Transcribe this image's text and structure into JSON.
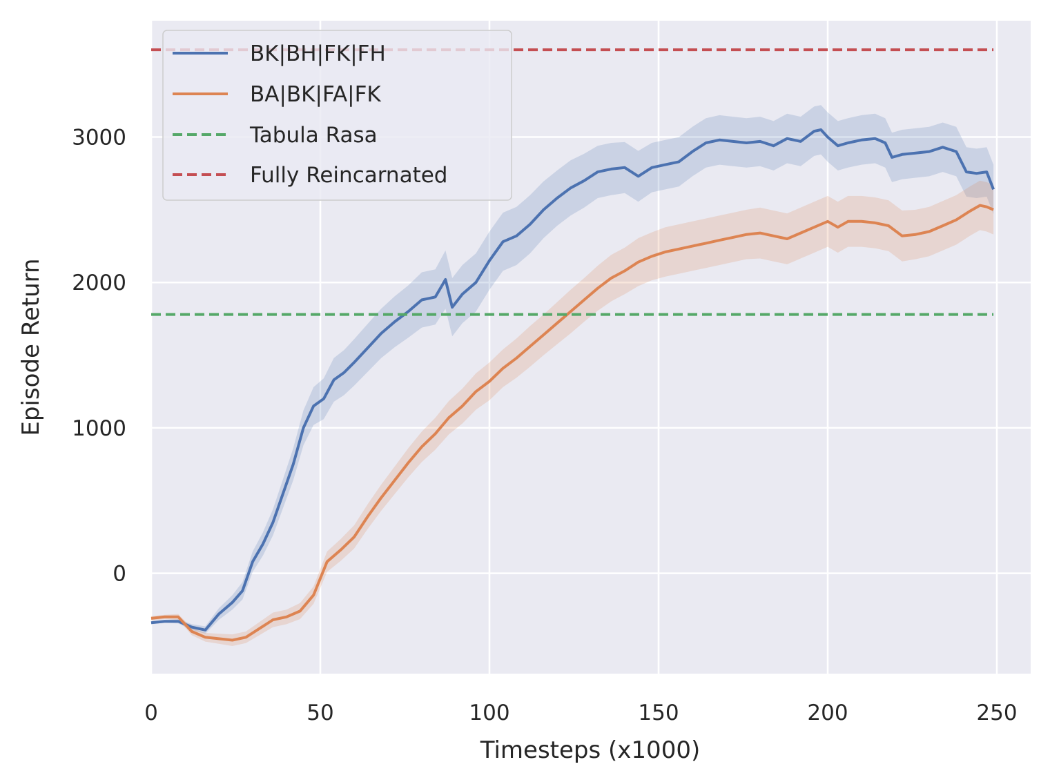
{
  "chart_data": {
    "type": "line",
    "title": "",
    "xlabel": "Timesteps (x1000)",
    "ylabel": "Episode Return",
    "xlim": [
      0,
      260
    ],
    "ylim": [
      -690,
      3800
    ],
    "xticks": [
      0,
      50,
      100,
      150,
      200,
      250
    ],
    "yticks": [
      0,
      1000,
      2000,
      3000
    ],
    "grid": true,
    "legend_position": "top-left",
    "background": "#eaeaf2",
    "series": [
      {
        "name": "BK|BH|FK|FH",
        "color": "#4c72b0",
        "style": "solid",
        "band_alpha": 0.2,
        "points": [
          [
            0,
            -340,
            10
          ],
          [
            4,
            -330,
            10
          ],
          [
            8,
            -330,
            15
          ],
          [
            12,
            -370,
            20
          ],
          [
            16,
            -390,
            25
          ],
          [
            20,
            -280,
            40
          ],
          [
            24,
            -200,
            50
          ],
          [
            27,
            -120,
            60
          ],
          [
            30,
            80,
            70
          ],
          [
            33,
            200,
            80
          ],
          [
            36,
            350,
            90
          ],
          [
            39,
            550,
            100
          ],
          [
            42,
            750,
            110
          ],
          [
            45,
            1000,
            120
          ],
          [
            48,
            1150,
            130
          ],
          [
            51,
            1200,
            140
          ],
          [
            54,
            1330,
            150
          ],
          [
            57,
            1380,
            155
          ],
          [
            60,
            1450,
            160
          ],
          [
            64,
            1550,
            165
          ],
          [
            68,
            1650,
            170
          ],
          [
            72,
            1730,
            175
          ],
          [
            76,
            1800,
            180
          ],
          [
            80,
            1880,
            190
          ],
          [
            84,
            1900,
            190
          ],
          [
            87,
            2020,
            200
          ],
          [
            89,
            1830,
            200
          ],
          [
            92,
            1920,
            200
          ],
          [
            96,
            2000,
            200
          ],
          [
            100,
            2150,
            200
          ],
          [
            104,
            2280,
            200
          ],
          [
            108,
            2320,
            200
          ],
          [
            112,
            2400,
            200
          ],
          [
            116,
            2500,
            195
          ],
          [
            120,
            2580,
            190
          ],
          [
            124,
            2650,
            190
          ],
          [
            128,
            2700,
            185
          ],
          [
            132,
            2760,
            180
          ],
          [
            136,
            2780,
            180
          ],
          [
            140,
            2790,
            175
          ],
          [
            144,
            2730,
            175
          ],
          [
            148,
            2790,
            170
          ],
          [
            152,
            2810,
            170
          ],
          [
            156,
            2830,
            170
          ],
          [
            160,
            2900,
            170
          ],
          [
            164,
            2960,
            170
          ],
          [
            168,
            2980,
            170
          ],
          [
            172,
            2970,
            170
          ],
          [
            176,
            2960,
            170
          ],
          [
            180,
            2970,
            170
          ],
          [
            184,
            2940,
            170
          ],
          [
            188,
            2990,
            170
          ],
          [
            192,
            2970,
            170
          ],
          [
            196,
            3040,
            170
          ],
          [
            198,
            3050,
            170
          ],
          [
            200,
            3000,
            170
          ],
          [
            203,
            2940,
            170
          ],
          [
            206,
            2960,
            170
          ],
          [
            210,
            2980,
            170
          ],
          [
            214,
            2990,
            170
          ],
          [
            217,
            2960,
            170
          ],
          [
            219,
            2860,
            170
          ],
          [
            222,
            2880,
            170
          ],
          [
            226,
            2890,
            170
          ],
          [
            230,
            2900,
            170
          ],
          [
            234,
            2930,
            170
          ],
          [
            238,
            2900,
            170
          ],
          [
            241,
            2760,
            170
          ],
          [
            244,
            2750,
            170
          ],
          [
            247,
            2760,
            170
          ],
          [
            249,
            2640,
            170
          ]
        ]
      },
      {
        "name": "BA|BK|FA|FK",
        "color": "#dd8452",
        "style": "solid",
        "band_alpha": 0.2,
        "points": [
          [
            0,
            -310,
            15
          ],
          [
            4,
            -300,
            15
          ],
          [
            8,
            -300,
            20
          ],
          [
            12,
            -400,
            25
          ],
          [
            16,
            -440,
            30
          ],
          [
            20,
            -450,
            35
          ],
          [
            24,
            -460,
            40
          ],
          [
            28,
            -440,
            40
          ],
          [
            32,
            -380,
            45
          ],
          [
            36,
            -320,
            50
          ],
          [
            40,
            -300,
            50
          ],
          [
            44,
            -260,
            55
          ],
          [
            48,
            -150,
            60
          ],
          [
            52,
            80,
            70
          ],
          [
            56,
            160,
            75
          ],
          [
            60,
            250,
            80
          ],
          [
            64,
            390,
            85
          ],
          [
            68,
            520,
            90
          ],
          [
            72,
            640,
            95
          ],
          [
            76,
            760,
            100
          ],
          [
            80,
            870,
            105
          ],
          [
            84,
            960,
            110
          ],
          [
            88,
            1070,
            115
          ],
          [
            92,
            1150,
            120
          ],
          [
            96,
            1250,
            125
          ],
          [
            100,
            1320,
            130
          ],
          [
            104,
            1410,
            130
          ],
          [
            108,
            1480,
            135
          ],
          [
            112,
            1560,
            140
          ],
          [
            116,
            1640,
            140
          ],
          [
            120,
            1720,
            145
          ],
          [
            124,
            1800,
            150
          ],
          [
            128,
            1880,
            150
          ],
          [
            132,
            1960,
            155
          ],
          [
            136,
            2030,
            160
          ],
          [
            140,
            2080,
            160
          ],
          [
            144,
            2140,
            165
          ],
          [
            148,
            2180,
            165
          ],
          [
            152,
            2210,
            170
          ],
          [
            156,
            2230,
            170
          ],
          [
            160,
            2250,
            170
          ],
          [
            164,
            2270,
            170
          ],
          [
            168,
            2290,
            170
          ],
          [
            172,
            2310,
            170
          ],
          [
            176,
            2330,
            170
          ],
          [
            180,
            2340,
            175
          ],
          [
            184,
            2320,
            175
          ],
          [
            188,
            2300,
            175
          ],
          [
            192,
            2340,
            175
          ],
          [
            196,
            2380,
            175
          ],
          [
            200,
            2420,
            175
          ],
          [
            203,
            2380,
            175
          ],
          [
            206,
            2420,
            175
          ],
          [
            210,
            2420,
            175
          ],
          [
            214,
            2410,
            175
          ],
          [
            218,
            2390,
            175
          ],
          [
            222,
            2320,
            175
          ],
          [
            226,
            2330,
            170
          ],
          [
            230,
            2350,
            170
          ],
          [
            234,
            2390,
            170
          ],
          [
            238,
            2430,
            170
          ],
          [
            242,
            2490,
            170
          ],
          [
            245,
            2530,
            170
          ],
          [
            247,
            2520,
            170
          ],
          [
            249,
            2500,
            170
          ]
        ]
      },
      {
        "name": "Tabula Rasa",
        "color": "#55a868",
        "style": "dashed",
        "points": [
          [
            0,
            1780
          ],
          [
            249,
            1780
          ]
        ]
      },
      {
        "name": "Fully Reincarnated",
        "color": "#c44e52",
        "style": "dashed",
        "points": [
          [
            0,
            3600
          ],
          [
            249,
            3600
          ]
        ]
      }
    ]
  }
}
